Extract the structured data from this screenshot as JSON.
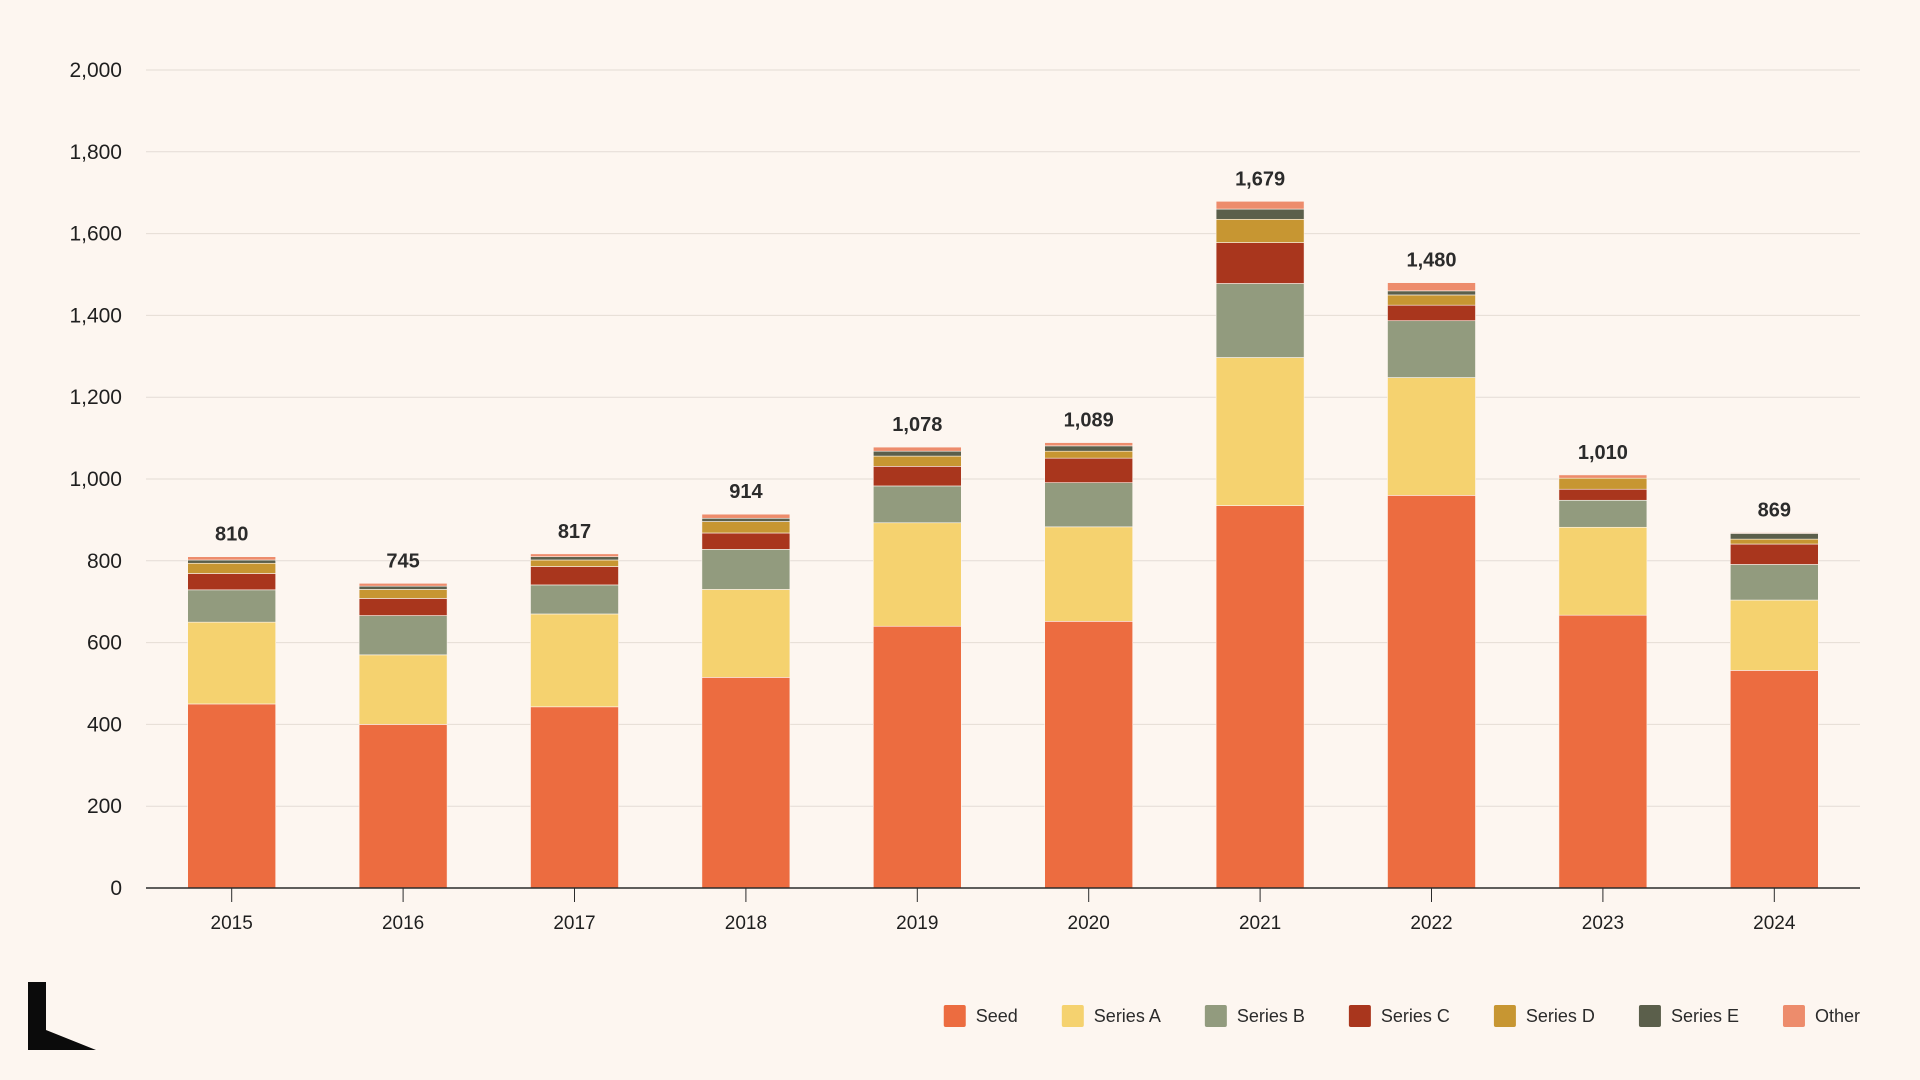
{
  "chart_data": {
    "type": "bar",
    "stacked": true,
    "title": "",
    "xlabel": "",
    "ylabel": "",
    "ylim": [
      0,
      2000
    ],
    "yticks": [
      0,
      200,
      400,
      600,
      800,
      1000,
      1200,
      1400,
      1600,
      1800,
      2000
    ],
    "ytick_labels": [
      "0",
      "200",
      "400",
      "600",
      "800",
      "1,000",
      "1,200",
      "1,400",
      "1,600",
      "1,800",
      "2,000"
    ],
    "grid": true,
    "legend_position": "bottom-right",
    "categories": [
      "2015",
      "2016",
      "2017",
      "2018",
      "2019",
      "2020",
      "2021",
      "2022",
      "2023",
      "2024"
    ],
    "totals": [
      810,
      745,
      817,
      914,
      1078,
      1089,
      1679,
      1480,
      1010,
      869
    ],
    "total_labels": [
      "810",
      "745",
      "817",
      "914",
      "1,078",
      "1,089",
      "1,679",
      "1,480",
      "1,010",
      "869"
    ],
    "series": [
      {
        "name": "Seed",
        "color": "#ec6c40",
        "values": [
          450,
          400,
          443,
          515,
          640,
          652,
          935,
          960,
          667,
          532
        ]
      },
      {
        "name": "Series A",
        "color": "#f5d26f",
        "values": [
          200,
          170,
          227,
          215,
          253,
          231,
          362,
          288,
          215,
          172
        ]
      },
      {
        "name": "Series B",
        "color": "#929b7e",
        "values": [
          79,
          96,
          71,
          98,
          90,
          108,
          181,
          139,
          66,
          87
        ]
      },
      {
        "name": "Series C",
        "color": "#a9361d",
        "values": [
          40,
          42,
          45,
          40,
          48,
          60,
          100,
          38,
          27,
          50
        ]
      },
      {
        "name": "Series D",
        "color": "#c79632",
        "values": [
          25,
          22,
          16,
          28,
          25,
          17,
          57,
          25,
          27,
          12
        ]
      },
      {
        "name": "Series E",
        "color": "#5b5f4b",
        "values": [
          8,
          8,
          8,
          8,
          12,
          13,
          25,
          10,
          0,
          14
        ]
      },
      {
        "name": "Other",
        "color": "#ed8c6c",
        "values": [
          8,
          7,
          7,
          10,
          10,
          8,
          19,
          20,
          8,
          2
        ]
      }
    ]
  }
}
